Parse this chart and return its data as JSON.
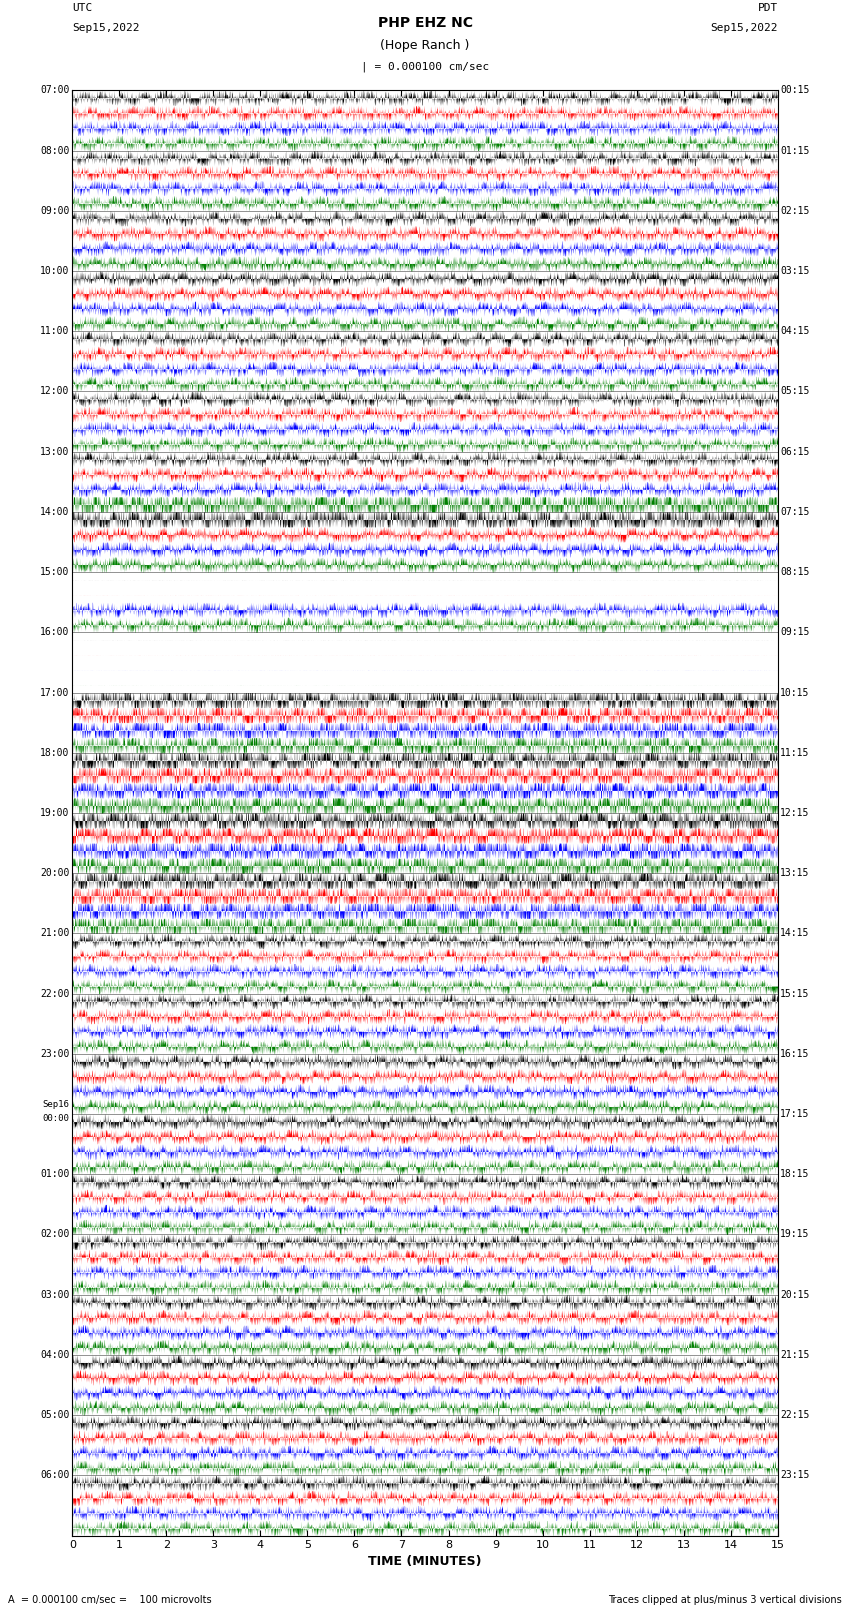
{
  "title_line1": "PHP EHZ NC",
  "title_line2": "(Hope Ranch )",
  "scale_label": "= 0.000100 cm/sec",
  "utc_label": "UTC\nSep15,2022",
  "pdt_label": "PDT\nSep15,2022",
  "xlabel": "TIME (MINUTES)",
  "bottom_label": "A  = 0.000100 cm/sec =    100 microvolts",
  "bottom_right": "Traces clipped at plus/minus 3 vertical divisions",
  "left_times": [
    "07:00",
    "08:00",
    "09:00",
    "10:00",
    "11:00",
    "12:00",
    "13:00",
    "14:00",
    "15:00",
    "16:00",
    "17:00",
    "18:00",
    "19:00",
    "20:00",
    "21:00",
    "22:00",
    "23:00",
    "Sep16\n00:00",
    "01:00",
    "02:00",
    "03:00",
    "04:00",
    "05:00",
    "06:00"
  ],
  "right_times": [
    "00:15",
    "01:15",
    "02:15",
    "03:15",
    "04:15",
    "05:15",
    "06:15",
    "07:15",
    "08:15",
    "09:15",
    "10:15",
    "11:15",
    "12:15",
    "13:15",
    "14:15",
    "15:15",
    "16:15",
    "17:15",
    "18:15",
    "19:15",
    "20:15",
    "21:15",
    "22:15",
    "23:15"
  ],
  "n_rows": 24,
  "n_traces_per_row": 4,
  "trace_colors": [
    "black",
    "red",
    "blue",
    "green"
  ],
  "bg_color": "white",
  "x_min": 0,
  "x_max": 15,
  "x_ticks": [
    0,
    1,
    2,
    3,
    4,
    5,
    6,
    7,
    8,
    9,
    10,
    11,
    12,
    13,
    14,
    15
  ]
}
